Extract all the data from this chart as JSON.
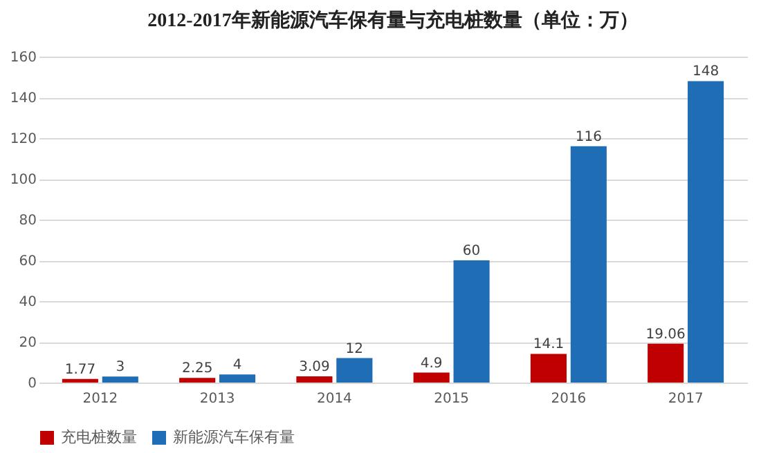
{
  "chart_data": {
    "type": "bar",
    "title": "2012-2017年新能源汽车保有量与充电桩数量（单位：万）",
    "categories": [
      "2012",
      "2013",
      "2014",
      "2015",
      "2016",
      "2017"
    ],
    "series": [
      {
        "name": "充电桩数量",
        "color": "#c00000",
        "values": [
          1.77,
          2.25,
          3.09,
          4.9,
          14.1,
          19.06
        ]
      },
      {
        "name": "新能源汽车保有量",
        "color": "#1f6db5",
        "values": [
          3,
          4,
          12,
          60,
          116,
          148
        ]
      }
    ],
    "ylim": [
      0,
      160
    ],
    "yticks": [
      0,
      20,
      40,
      60,
      80,
      100,
      120,
      140,
      160
    ],
    "grid": "y",
    "legend": "bottom",
    "data_labels": true
  }
}
